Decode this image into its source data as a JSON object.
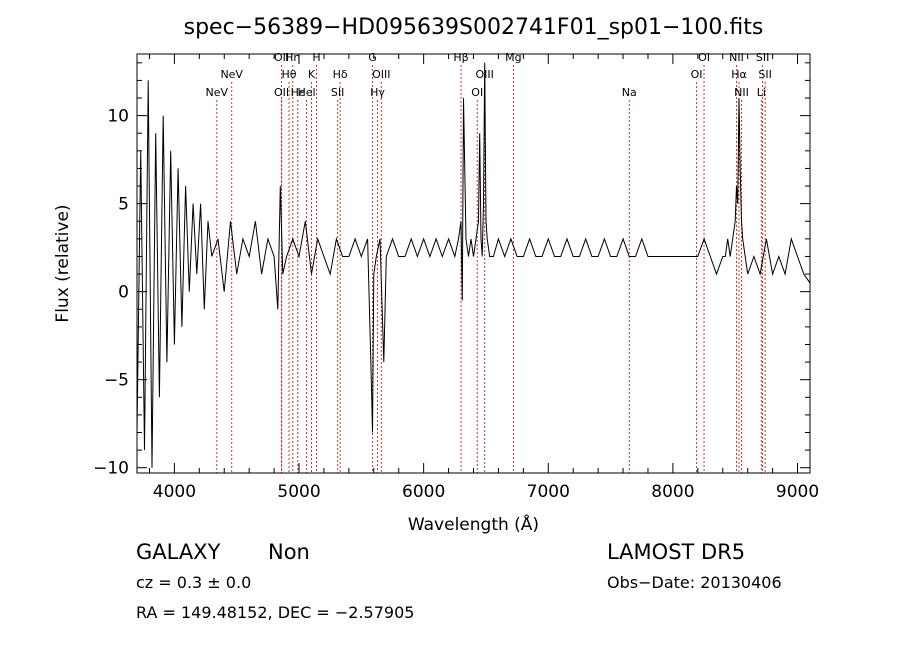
{
  "chart_data": {
    "type": "line",
    "title": "spec−56389−HD095639S002741F01_sp01−100.fits",
    "xlabel": "Wavelength (Å)",
    "ylabel": "Flux (relative)",
    "xlim": [
      3700,
      9100
    ],
    "ylim": [
      -10.3,
      13.5
    ],
    "x_ticks": [
      4000,
      5000,
      6000,
      7000,
      8000,
      9000
    ],
    "y_ticks": [
      -10,
      -5,
      0,
      5,
      10
    ],
    "x_tick_labels": [
      "4000",
      "5000",
      "6000",
      "7000",
      "8000",
      "9000"
    ],
    "y_tick_labels": [
      "−10",
      "−5",
      "0",
      "5",
      "10"
    ],
    "grid": false,
    "line_color": "#000000",
    "marker_color": "#c0392b",
    "series": [
      {
        "x": [
          3700,
          3730,
          3760,
          3790,
          3820,
          3850,
          3880,
          3910,
          3940,
          3970,
          4000,
          4030,
          4060,
          4090,
          4120,
          4150,
          4180,
          4210,
          4240,
          4270,
          4300,
          4350,
          4400,
          4450,
          4500,
          4550,
          4600,
          4650,
          4700,
          4750,
          4800,
          4830,
          4850,
          4870,
          4900,
          4950,
          5000,
          5050,
          5100,
          5150,
          5200,
          5250,
          5300,
          5350,
          5400,
          5450,
          5500,
          5550,
          5580,
          5590,
          5600,
          5620,
          5650,
          5680,
          5700,
          5750,
          5800,
          5850,
          5900,
          5950,
          6000,
          6050,
          6100,
          6150,
          6200,
          6250,
          6280,
          6300,
          6310,
          6320,
          6340,
          6360,
          6380,
          6400,
          6420,
          6440,
          6450,
          6460,
          6470,
          6480,
          6490,
          6500,
          6510,
          6530,
          6560,
          6600,
          6650,
          6700,
          6750,
          6800,
          6850,
          6900,
          6950,
          7000,
          7050,
          7100,
          7150,
          7200,
          7250,
          7300,
          7350,
          7400,
          7450,
          7500,
          7550,
          7600,
          7650,
          7700,
          7750,
          7800,
          7850,
          7900,
          7950,
          8000,
          8050,
          8100,
          8150,
          8200,
          8250,
          8300,
          8350,
          8400,
          8420,
          8440,
          8460,
          8480,
          8500,
          8510,
          8520,
          8530,
          8540,
          8550,
          8560,
          8580,
          8600,
          8650,
          8700,
          8750,
          8800,
          8850,
          8900,
          8950,
          9000,
          9050,
          9100
        ],
        "y": [
          -8,
          8,
          -9,
          12,
          -10,
          9,
          -6,
          10,
          -4,
          8,
          -3,
          7,
          -2,
          6,
          0,
          5,
          1,
          5,
          -1,
          4,
          2,
          3,
          0,
          4,
          1,
          3,
          2,
          4,
          1,
          3,
          2,
          -1,
          6,
          1,
          2,
          3,
          2,
          4,
          1,
          3,
          2,
          1,
          3,
          2,
          2,
          3,
          2,
          3,
          -5,
          -8,
          1,
          2,
          3,
          -4,
          2,
          3,
          2,
          2,
          3,
          2,
          3,
          2,
          3,
          2,
          3,
          2,
          3,
          4,
          -0.5,
          11,
          3,
          2,
          3,
          2,
          3,
          4,
          9,
          3,
          2,
          5,
          13,
          4,
          3,
          2,
          2,
          3,
          2,
          3,
          2,
          2,
          3,
          2,
          2,
          3,
          2,
          2,
          3,
          2,
          2,
          3,
          2,
          2,
          3,
          2,
          2,
          3,
          2,
          2,
          3,
          2,
          2,
          2,
          2,
          2,
          2,
          2,
          2,
          2,
          3,
          2,
          1,
          2,
          2,
          3,
          2,
          3,
          4,
          6,
          5,
          11,
          7,
          4,
          3,
          2,
          1,
          2,
          1,
          3,
          1,
          2,
          1,
          3,
          2,
          1,
          0.5
        ]
      }
    ],
    "line_markers": [
      {
        "label": "NeV",
        "lambda": 4340,
        "row": 3
      },
      {
        "label": "NeV",
        "lambda": 4460,
        "row": 2
      },
      {
        "label": "OII",
        "lambda": 4860,
        "row": 1
      },
      {
        "label": "OII",
        "lambda": 4860,
        "row": 3
      },
      {
        "label": "Hη",
        "lambda": 4950,
        "row": 1
      },
      {
        "label": "Hθ",
        "lambda": 4920,
        "row": 2
      },
      {
        "label": "Hε",
        "lambda": 4990,
        "row": 3
      },
      {
        "label": "H",
        "lambda": 5140,
        "row": 1
      },
      {
        "label": "K",
        "lambda": 5100,
        "row": 2
      },
      {
        "label": "Hel",
        "lambda": 5060,
        "row": 3
      },
      {
        "label": "Hδ",
        "lambda": 5330,
        "row": 2
      },
      {
        "label": "SII",
        "lambda": 5310,
        "row": 3
      },
      {
        "label": "G",
        "lambda": 5590,
        "row": 1
      },
      {
        "label": "OIII",
        "lambda": 5660,
        "row": 2
      },
      {
        "label": "Hγ",
        "lambda": 5630,
        "row": 3
      },
      {
        "label": "Hβ",
        "lambda": 6300,
        "row": 1
      },
      {
        "label": "OIII",
        "lambda": 6490,
        "row": 2
      },
      {
        "label": "OI",
        "lambda": 6430,
        "row": 3
      },
      {
        "label": "Mg",
        "lambda": 6720,
        "row": 1
      },
      {
        "label": "Na",
        "lambda": 7650,
        "row": 3
      },
      {
        "label": "OI",
        "lambda": 8250,
        "row": 1
      },
      {
        "label": "OI",
        "lambda": 8190,
        "row": 2
      },
      {
        "label": "NII",
        "lambda": 8510,
        "row": 1
      },
      {
        "label": "Hα",
        "lambda": 8530,
        "row": 2
      },
      {
        "label": "NII",
        "lambda": 8550,
        "row": 3
      },
      {
        "label": "SII",
        "lambda": 8720,
        "row": 1
      },
      {
        "label": "SII",
        "lambda": 8740,
        "row": 2
      },
      {
        "label": "Li",
        "lambda": 8710,
        "row": 3
      }
    ]
  },
  "info": {
    "class": "GALAXY",
    "subclass": "Non",
    "cz": "cz = 0.3 ± 0.0",
    "radec": "RA = 149.48152, DEC =  −2.57905",
    "survey": "LAMOST  DR5",
    "obsdate": "Obs−Date: 20130406"
  }
}
